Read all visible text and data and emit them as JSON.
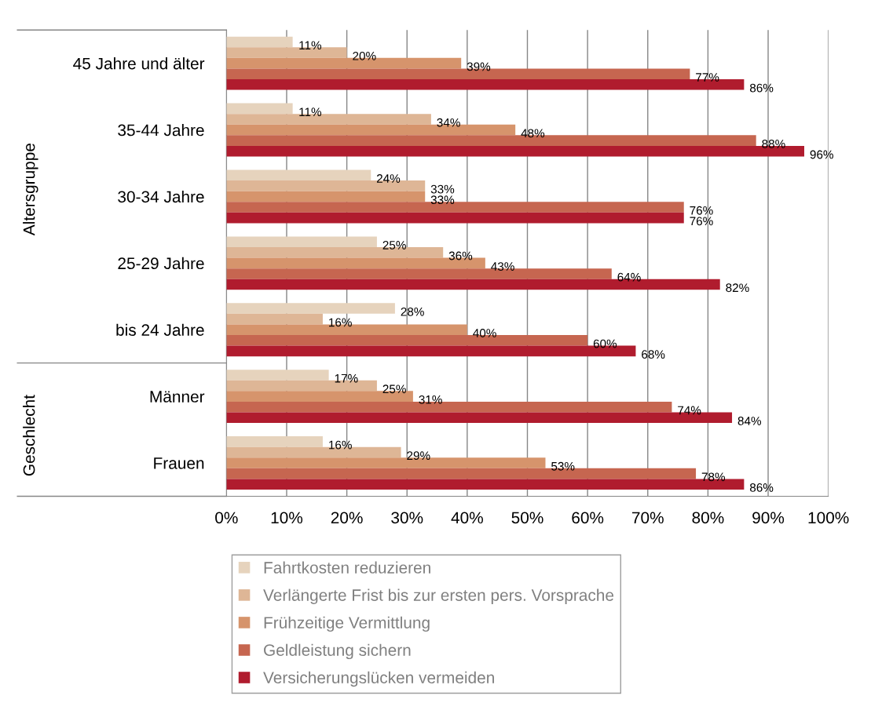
{
  "chart_data": {
    "type": "bar",
    "orientation": "horizontal",
    "categories": [
      "45 Jahre und älter",
      "35-44 Jahre",
      "30-34 Jahre",
      "25-29 Jahre",
      "bis 24 Jahre",
      "Männer",
      "Frauen"
    ],
    "series": [
      {
        "name": "Fahrtkosten reduzieren",
        "color": "#e6d3bd",
        "values": [
          11,
          11,
          24,
          25,
          28,
          17,
          16
        ],
        "value_labels": [
          "11%",
          "11%",
          "24%",
          "25%",
          "28%",
          "17%",
          "16%"
        ]
      },
      {
        "name": "Verlängerte Frist bis zur ersten pers. Vorsprache",
        "color": "#deb696",
        "values": [
          20,
          34,
          33,
          36,
          16,
          25,
          29
        ],
        "value_labels": [
          "20%",
          "34%",
          "33%",
          "36%",
          "16%",
          "25%",
          "29%"
        ]
      },
      {
        "name": "Frühzeitige Vermittlung",
        "color": "#d6946c",
        "values": [
          39,
          48,
          33,
          43,
          40,
          31,
          53
        ],
        "value_labels": [
          "39%",
          "48%",
          "33%",
          "43%",
          "40%",
          "31%",
          "53%"
        ]
      },
      {
        "name": "Geldleistung sichern",
        "color": "#c66650",
        "values": [
          77,
          88,
          76,
          64,
          60,
          74,
          78
        ],
        "value_labels": [
          "77%",
          "88%",
          "76%",
          "64%",
          "60%",
          "74%",
          "78%"
        ]
      },
      {
        "name": "Versicherungslücken vermeiden",
        "color": "#b01c2e",
        "values": [
          86,
          96,
          76,
          82,
          68,
          84,
          86
        ],
        "value_labels": [
          "86%",
          "96%",
          "76%",
          "82%",
          "68%",
          "84%",
          "86%"
        ]
      }
    ],
    "xlim": [
      0,
      100
    ],
    "xticks": [
      {
        "value": 0,
        "label": "0%"
      },
      {
        "value": 10,
        "label": "10%"
      },
      {
        "value": 20,
        "label": "20%"
      },
      {
        "value": 30,
        "label": "30%"
      },
      {
        "value": 40,
        "label": "40%"
      },
      {
        "value": 50,
        "label": "50%"
      },
      {
        "value": 60,
        "label": "60%"
      },
      {
        "value": 70,
        "label": "70%"
      },
      {
        "value": 80,
        "label": "80%"
      },
      {
        "value": 90,
        "label": "90%"
      },
      {
        "value": 100,
        "label": "100%"
      }
    ],
    "annotations": [
      "Altersgruppe",
      "Geschlecht"
    ],
    "grid": "x",
    "legend": "bottom"
  }
}
